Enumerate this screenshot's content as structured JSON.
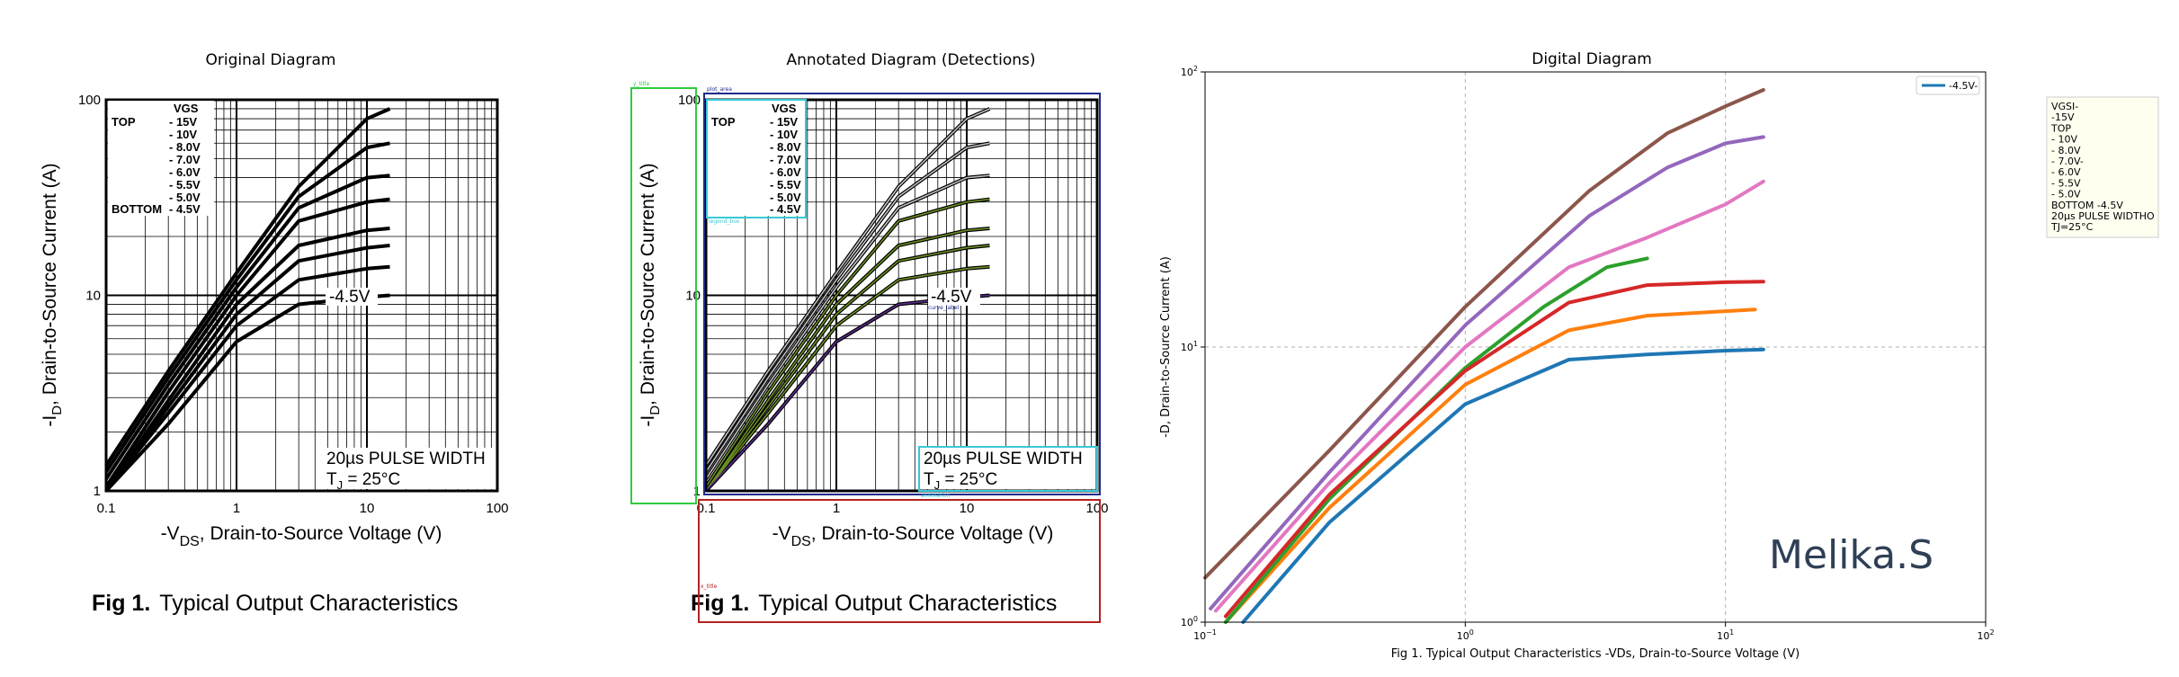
{
  "panels": {
    "original_title": "Original Diagram",
    "annotated_title": "Annotated Diagram (Detections)",
    "digital_title": "Digital Diagram"
  },
  "datasheet": {
    "y_label": "-I",
    "y_label_sub": "D",
    "y_label_rest": ", Drain-to-Source Current (A)",
    "x_label": "-V",
    "x_label_sub": "DS",
    "x_label_rest": ", Drain-to-Source Voltage (V)",
    "caption_bold": "Fig 1.",
    "caption_text": "Typical Output Characteristics",
    "vgs_header": "VGS",
    "top_label": "TOP",
    "bottom_label": "BOTTOM",
    "vgs_levels": [
      "- 15V",
      "- 10V",
      "- 8.0V",
      "- 7.0V",
      "- 6.0V",
      "- 5.5V",
      "- 5.0V",
      "- 4.5V"
    ],
    "curve_label": "-4.5V",
    "note_line1": "20µs PULSE WIDTH",
    "note_line2_a": "T",
    "note_line2_sub": "J",
    "note_line2_b": " = 25°C",
    "x_ticks": [
      "0.1",
      "1",
      "10",
      "100"
    ],
    "y_ticks": [
      "1",
      "10",
      "100"
    ]
  },
  "detections": {
    "labels": {
      "y_title": "y_title",
      "plot_area": "plot_area",
      "legend_box": "legend_box",
      "x_title": "x_title",
      "annotation": "annotation",
      "curve_label": "curve_label"
    },
    "colors": {
      "y_title": "#2ecc40",
      "plot_area": "#1f2a8c",
      "legend_box": "#39c8d6",
      "x_title": "#b22222",
      "annotation": "#39c8d6",
      "overlay_curve": "#6b8e23",
      "overlay_low": "#5b2d8e"
    }
  },
  "digital": {
    "legend_entry": "-4.5V-",
    "legend_color": "#1f77b4",
    "y_label": "-D, Drain-to-Source Current (A)",
    "x_label": "Fig 1. Typical Output Characteristics -VDs, Drain-to-Source Voltage (V)",
    "x_ticks": [
      {
        "base": "10",
        "exp": "−1"
      },
      {
        "base": "10",
        "exp": "0"
      },
      {
        "base": "10",
        "exp": "1"
      },
      {
        "base": "10",
        "exp": "2"
      }
    ],
    "y_ticks": [
      {
        "base": "10",
        "exp": "0"
      },
      {
        "base": "10",
        "exp": "1"
      },
      {
        "base": "10",
        "exp": "2"
      }
    ],
    "side_box": [
      "VGSI-",
      "  -15V",
      "  TOP",
      "   - 10V",
      "   - 8.0V",
      "   - 7.0V-",
      "   - 6.0V",
      "   - 5.5V",
      "   - 5.0V",
      "  BOTTOM -4.5V",
      "  20µs PULSE WIDTHO",
      "  TJ=25°C"
    ],
    "signature": "Melika.S"
  },
  "chart_data": [
    {
      "type": "line",
      "title": "Original Diagram",
      "xlabel": "-VDS, Drain-to-Source Voltage (V)",
      "ylabel": "-ID, Drain-to-Source Current (A)",
      "xscale": "log",
      "yscale": "log",
      "xlim": [
        0.1,
        100
      ],
      "ylim": [
        1,
        100
      ],
      "legend": "top-left",
      "series": [
        {
          "name": "- 15V",
          "x": [
            0.1,
            0.3,
            1,
            3,
            10,
            15
          ],
          "y": [
            1.35,
            4.1,
            13,
            36,
            80,
            90
          ]
        },
        {
          "name": "- 10V",
          "x": [
            0.1,
            0.3,
            1,
            3,
            10,
            15
          ],
          "y": [
            1.25,
            3.8,
            12,
            32,
            57,
            60
          ]
        },
        {
          "name": "- 8.0V",
          "x": [
            0.1,
            0.3,
            1,
            3,
            10,
            15
          ],
          "y": [
            1.15,
            3.5,
            11,
            28,
            40,
            41
          ]
        },
        {
          "name": "- 7.0V",
          "x": [
            0.1,
            0.3,
            1,
            3,
            10,
            15
          ],
          "y": [
            1.05,
            3.2,
            10,
            24,
            30,
            31
          ]
        },
        {
          "name": "- 6.0V",
          "x": [
            0.1,
            0.3,
            1,
            3,
            10,
            15
          ],
          "y": [
            0.97,
            2.9,
            9,
            18,
            21.5,
            22
          ]
        },
        {
          "name": "- 5.5V",
          "x": [
            0.1,
            0.3,
            1,
            3,
            10,
            15
          ],
          "y": [
            0.9,
            2.7,
            8,
            15,
            17.5,
            18
          ]
        },
        {
          "name": "- 5.0V",
          "x": [
            0.1,
            0.3,
            1,
            3,
            10,
            15
          ],
          "y": [
            0.83,
            2.5,
            7,
            12,
            13.7,
            14
          ]
        },
        {
          "name": "- 4.5V",
          "x": [
            0.1,
            0.3,
            1,
            3,
            10,
            15
          ],
          "y": [
            0.75,
            2.2,
            5.8,
            9,
            9.8,
            10
          ]
        }
      ]
    },
    {
      "type": "line",
      "title": "Annotated Diagram (Detections)",
      "xlabel": "-VDS, Drain-to-Source Voltage (V)",
      "ylabel": "-ID, Drain-to-Source Current (A)",
      "xscale": "log",
      "yscale": "log",
      "xlim": [
        0.1,
        100
      ],
      "ylim": [
        1,
        100
      ],
      "series": [
        {
          "name": "- 15V",
          "x": [
            0.1,
            0.3,
            1,
            3,
            10,
            15
          ],
          "y": [
            1.35,
            4.1,
            13,
            36,
            80,
            90
          ]
        },
        {
          "name": "- 10V",
          "x": [
            0.1,
            0.3,
            1,
            3,
            10,
            15
          ],
          "y": [
            1.25,
            3.8,
            12,
            32,
            57,
            60
          ]
        },
        {
          "name": "- 8.0V",
          "x": [
            0.1,
            0.3,
            1,
            3,
            10,
            15
          ],
          "y": [
            1.15,
            3.5,
            11,
            28,
            40,
            41
          ]
        },
        {
          "name": "- 7.0V",
          "x": [
            0.1,
            0.3,
            1,
            3,
            10,
            15
          ],
          "y": [
            1.05,
            3.2,
            10,
            24,
            30,
            31
          ]
        },
        {
          "name": "- 6.0V",
          "x": [
            0.1,
            0.3,
            1,
            3,
            10,
            15
          ],
          "y": [
            0.97,
            2.9,
            9,
            18,
            21.5,
            22
          ]
        },
        {
          "name": "- 5.5V",
          "x": [
            0.1,
            0.3,
            1,
            3,
            10,
            15
          ],
          "y": [
            0.9,
            2.7,
            8,
            15,
            17.5,
            18
          ]
        },
        {
          "name": "- 5.0V",
          "x": [
            0.1,
            0.3,
            1,
            3,
            10,
            15
          ],
          "y": [
            0.83,
            2.5,
            7,
            12,
            13.7,
            14
          ]
        },
        {
          "name": "- 4.5V",
          "x": [
            0.1,
            0.3,
            1,
            3,
            10,
            15
          ],
          "y": [
            0.75,
            2.2,
            5.8,
            9,
            9.8,
            10
          ]
        }
      ]
    },
    {
      "type": "line",
      "title": "Digital Diagram",
      "xlabel": "Fig 1. Typical Output Characteristics -VDs, Drain-to-Source Voltage (V)",
      "ylabel": "-D, Drain-to-Source Current (A)",
      "xscale": "log",
      "yscale": "log",
      "xlim": [
        0.1,
        100
      ],
      "ylim": [
        1,
        100
      ],
      "grid": true,
      "legend": "top-right",
      "series": [
        {
          "color": "#1f77b4",
          "x": [
            0.14,
            0.3,
            1,
            2.5,
            5,
            10,
            14
          ],
          "y": [
            1,
            2.3,
            6.2,
            9,
            9.4,
            9.7,
            9.8
          ]
        },
        {
          "color": "#ff7f0e",
          "x": [
            0.12,
            0.3,
            1,
            2.5,
            5,
            10,
            13
          ],
          "y": [
            1,
            2.6,
            7.3,
            11.5,
            13,
            13.5,
            13.7
          ]
        },
        {
          "color": "#2ca02c",
          "x": [
            0.12,
            0.3,
            1,
            2,
            3.5,
            5
          ],
          "y": [
            1,
            2.8,
            8.4,
            14,
            19.5,
            21
          ]
        },
        {
          "color": "#d62728",
          "x": [
            0.12,
            0.3,
            1,
            2.5,
            5,
            10,
            14
          ],
          "y": [
            1.05,
            2.9,
            8.2,
            14.5,
            16.8,
            17.2,
            17.3
          ]
        },
        {
          "color": "#e377c2",
          "x": [
            0.11,
            0.3,
            1,
            2.5,
            5,
            10,
            14
          ],
          "y": [
            1.1,
            3.2,
            10,
            19.5,
            25,
            33,
            40
          ]
        },
        {
          "color": "#9467bd",
          "x": [
            0.105,
            0.3,
            1,
            3,
            6,
            10,
            14
          ],
          "y": [
            1.12,
            3.5,
            12,
            30,
            45,
            55,
            58
          ]
        },
        {
          "color": "#8c564b",
          "x": [
            0.1,
            0.3,
            1,
            3,
            6,
            10,
            14
          ],
          "y": [
            1.45,
            4.2,
            14,
            37,
            60,
            75,
            86
          ]
        }
      ]
    }
  ]
}
